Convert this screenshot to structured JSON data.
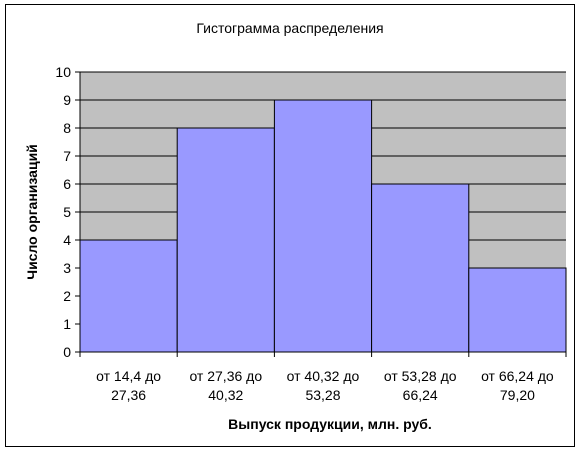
{
  "chart_data": {
    "type": "bar",
    "title": "Гистограмма распределения",
    "xlabel": "Выпуск продукции, млн. руб.",
    "ylabel": "Число организаций",
    "categories": [
      [
        "от 14,4 до",
        "27,36"
      ],
      [
        "от 27,36 до",
        "40,32"
      ],
      [
        "от 40,32 до",
        "53,28"
      ],
      [
        "от 53,28 до",
        "66,24"
      ],
      [
        "от 66,24 до",
        "79,20"
      ]
    ],
    "values": [
      4,
      8,
      9,
      6,
      3
    ],
    "ylim": [
      0,
      10
    ],
    "yticks": [
      0,
      1,
      2,
      3,
      4,
      5,
      6,
      7,
      8,
      9,
      10
    ],
    "grid": true,
    "legend": "none",
    "colors": {
      "bar_fill": "#9999FF",
      "plot_bg": "#C0C0C0",
      "border": "#000000"
    }
  }
}
